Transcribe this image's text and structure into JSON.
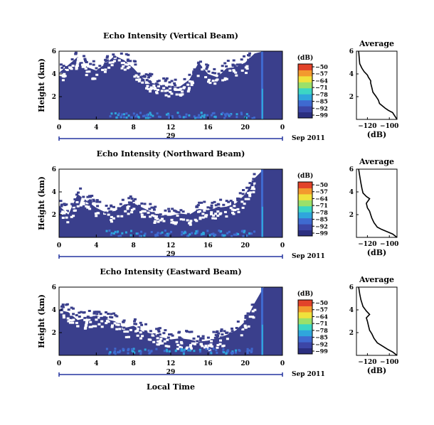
{
  "colors": {
    "background": "#3a3f8c",
    "colormap": [
      "#2b2f7f",
      "#3c46a6",
      "#3f6ad0",
      "#2fa6dc",
      "#3cd6c4",
      "#9be06a",
      "#f0e23c",
      "#f39a2e",
      "#e2432a"
    ],
    "line": "#000000",
    "timeline": "#2535a0"
  },
  "xlabel": "Local Time",
  "date_label": "Sep 2011",
  "day_label": "29",
  "ylabel": "Height (km)",
  "colorbar_unit": "(dB)",
  "colorbar_ticks": [
    "−50",
    "−57",
    "−64",
    "−71",
    "−78",
    "−85",
    "−92",
    "−99"
  ],
  "chart_data": [
    {
      "type": "heatmap",
      "title": "Echo Intensity (Vertical Beam)",
      "xlabel": "Local Time",
      "ylabel": "Height (km)",
      "x_ticks": [
        "0",
        "4",
        "8",
        "12",
        "16",
        "20",
        "0"
      ],
      "xlim": [
        0,
        24
      ],
      "y_ticks": [
        "6",
        "4",
        "2"
      ],
      "ylim": [
        0,
        6
      ],
      "colorbar": {
        "unit": "(dB)",
        "range": [
          -99,
          -50
        ]
      },
      "echo_tops": [
        [
          0,
          4.1
        ],
        [
          1,
          4.8
        ],
        [
          2,
          5.5
        ],
        [
          3,
          4.6
        ],
        [
          4,
          4.3
        ],
        [
          5,
          4.9
        ],
        [
          6,
          5.6
        ],
        [
          7,
          5.2
        ],
        [
          8,
          4.5
        ],
        [
          9,
          3.6
        ],
        [
          10,
          3.2
        ],
        [
          11,
          3.0
        ],
        [
          12,
          2.8
        ],
        [
          13,
          2.9
        ],
        [
          14,
          3.5
        ],
        [
          15,
          5.0
        ],
        [
          16,
          4.0
        ],
        [
          17,
          3.7
        ],
        [
          18,
          4.5
        ],
        [
          19,
          4.6
        ],
        [
          20,
          5.0
        ],
        [
          21,
          5.8
        ],
        [
          22,
          6.0
        ],
        [
          23,
          6.0
        ],
        [
          24,
          6.0
        ]
      ]
    },
    {
      "type": "heatmap",
      "title": "Echo Intensity (Northward Beam)",
      "xlabel": "Local Time",
      "ylabel": "Height (km)",
      "x_ticks": [
        "0",
        "4",
        "8",
        "12",
        "16",
        "20",
        "0"
      ],
      "xlim": [
        0,
        24
      ],
      "y_ticks": [
        "6",
        "4",
        "2"
      ],
      "ylim": [
        0,
        6
      ],
      "colorbar": {
        "unit": "(dB)",
        "range": [
          -99,
          -50
        ]
      },
      "echo_tops": [
        [
          0,
          2.8
        ],
        [
          1,
          2.0
        ],
        [
          2,
          3.8
        ],
        [
          3,
          3.2
        ],
        [
          4,
          2.6
        ],
        [
          5,
          2.2
        ],
        [
          6,
          2.3
        ],
        [
          7,
          2.9
        ],
        [
          8,
          3.0
        ],
        [
          9,
          2.6
        ],
        [
          10,
          2.2
        ],
        [
          11,
          1.9
        ],
        [
          12,
          1.9
        ],
        [
          13,
          2.1
        ],
        [
          14,
          2.0
        ],
        [
          15,
          2.5
        ],
        [
          16,
          2.4
        ],
        [
          17,
          2.6
        ],
        [
          18,
          2.7
        ],
        [
          19,
          3.0
        ],
        [
          20,
          3.8
        ],
        [
          21,
          5.2
        ],
        [
          22,
          6.0
        ],
        [
          23,
          6.0
        ],
        [
          24,
          6.0
        ]
      ]
    },
    {
      "type": "heatmap",
      "title": "Echo Intensity (Eastward Beam)",
      "xlabel": "Local Time",
      "ylabel": "Height (km)",
      "x_ticks": [
        "0",
        "4",
        "8",
        "12",
        "16",
        "20",
        "0"
      ],
      "xlim": [
        0,
        24
      ],
      "y_ticks": [
        "6",
        "4",
        "2"
      ],
      "ylim": [
        0,
        6
      ],
      "colorbar": {
        "unit": "(dB)",
        "range": [
          -99,
          -50
        ]
      },
      "echo_tops": [
        [
          0,
          4.0
        ],
        [
          1,
          3.8
        ],
        [
          2,
          3.1
        ],
        [
          3,
          3.3
        ],
        [
          4,
          3.5
        ],
        [
          5,
          3.2
        ],
        [
          6,
          3.0
        ],
        [
          7,
          2.4
        ],
        [
          8,
          2.6
        ],
        [
          9,
          2.1
        ],
        [
          10,
          1.9
        ],
        [
          11,
          1.6
        ],
        [
          12,
          1.4
        ],
        [
          13,
          1.5
        ],
        [
          14,
          1.4
        ],
        [
          15,
          1.2
        ],
        [
          16,
          1.3
        ],
        [
          17,
          1.5
        ],
        [
          18,
          1.8
        ],
        [
          19,
          2.2
        ],
        [
          20,
          3.0
        ],
        [
          21,
          4.6
        ],
        [
          22,
          6.0
        ],
        [
          23,
          6.0
        ],
        [
          24,
          6.0
        ]
      ]
    },
    {
      "type": "line",
      "title": "Average",
      "xlabel": "(dB)",
      "x_ticks": [
        "−120",
        "−100"
      ],
      "xlim": [
        -130,
        -93
      ],
      "y_ticks": [
        "6",
        "4",
        "2"
      ],
      "ylim": [
        0,
        6
      ],
      "points": [
        [
          -93,
          0
        ],
        [
          -95,
          0.3
        ],
        [
          -97,
          0.6
        ],
        [
          -101,
          0.8
        ],
        [
          -104,
          1.0
        ],
        [
          -109,
          1.4
        ],
        [
          -110,
          1.7
        ],
        [
          -112,
          2.0
        ],
        [
          -115,
          2.4
        ],
        [
          -116,
          2.8
        ],
        [
          -117,
          3.2
        ],
        [
          -117,
          3.4
        ],
        [
          -119,
          3.7
        ],
        [
          -120,
          3.9
        ],
        [
          -123,
          4.2
        ],
        [
          -125,
          4.5
        ],
        [
          -127,
          4.9
        ],
        [
          -127.5,
          5.4
        ],
        [
          -128,
          6.0
        ]
      ]
    },
    {
      "type": "line",
      "title": "Average",
      "xlabel": "(dB)",
      "x_ticks": [
        "−120",
        "−100"
      ],
      "xlim": [
        -130,
        -93
      ],
      "y_ticks": [
        "6",
        "4",
        "2"
      ],
      "ylim": [
        0,
        6
      ],
      "points": [
        [
          -93,
          0
        ],
        [
          -97,
          0.3
        ],
        [
          -102,
          0.5
        ],
        [
          -107,
          0.7
        ],
        [
          -111,
          0.9
        ],
        [
          -114,
          1.3
        ],
        [
          -116,
          1.7
        ],
        [
          -117,
          2.0
        ],
        [
          -118,
          2.3
        ],
        [
          -120,
          2.6
        ],
        [
          -121,
          3.0
        ],
        [
          -118,
          3.4
        ],
        [
          -121,
          3.6
        ],
        [
          -124,
          3.9
        ],
        [
          -125,
          4.3
        ],
        [
          -126,
          4.8
        ],
        [
          -127,
          5.4
        ],
        [
          -128,
          6.0
        ]
      ]
    },
    {
      "type": "line",
      "title": "Average",
      "xlabel": "(dB)",
      "x_ticks": [
        "−120",
        "−100"
      ],
      "xlim": [
        -130,
        -93
      ],
      "y_ticks": [
        "6",
        "4",
        "2"
      ],
      "ylim": [
        0,
        6
      ],
      "points": [
        [
          -93,
          0
        ],
        [
          -97,
          0.3
        ],
        [
          -101,
          0.5
        ],
        [
          -106,
          0.8
        ],
        [
          -111,
          1.1
        ],
        [
          -114,
          1.5
        ],
        [
          -116,
          1.9
        ],
        [
          -118,
          2.2
        ],
        [
          -119,
          2.6
        ],
        [
          -120,
          3.0
        ],
        [
          -121,
          3.3
        ],
        [
          -118,
          3.6
        ],
        [
          -121,
          3.9
        ],
        [
          -124,
          4.3
        ],
        [
          -126,
          4.9
        ],
        [
          -127,
          5.4
        ],
        [
          -128,
          6.0
        ]
      ]
    }
  ]
}
